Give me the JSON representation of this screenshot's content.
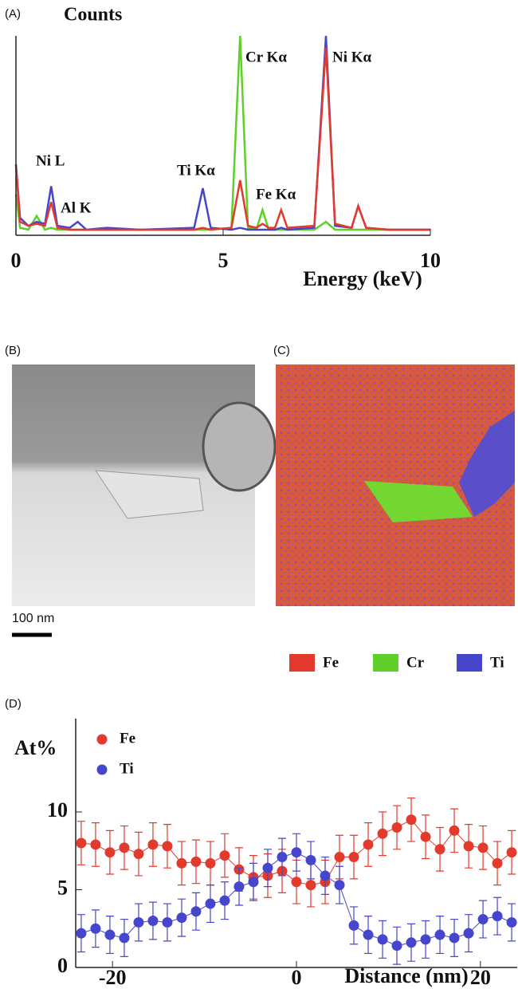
{
  "chart_data": [
    {
      "type": "line",
      "panel": "(A)",
      "y_label": "Counts",
      "x_label": "Energy (keV)",
      "annotations": [
        "Ni L",
        "Al K",
        "Ti Kα",
        "Cr Kα",
        "Fe Kα",
        "Ni Kα"
      ],
      "x": [
        0,
        0.1,
        0.3,
        0.5,
        0.7,
        0.85,
        1.0,
        1.3,
        1.49,
        1.7,
        2.2,
        3,
        4.3,
        4.51,
        4.7,
        5.2,
        5.41,
        5.6,
        5.8,
        5.95,
        6.1,
        6.25,
        6.4,
        6.55,
        7.2,
        7.48,
        7.7,
        8.1,
        8.26,
        8.45,
        9,
        10
      ],
      "xlim": [
        0,
        10
      ],
      "xticks": [
        0,
        5,
        10
      ],
      "ylim": [
        0,
        100
      ],
      "series": [
        {
          "color": "#5fcf2a",
          "values": [
            20,
            3,
            2,
            9,
            2,
            3,
            2,
            2,
            2,
            2,
            2,
            2,
            2,
            2,
            2,
            3,
            100,
            3,
            2,
            12,
            2,
            2,
            2,
            2,
            2,
            6,
            2,
            2,
            2,
            2,
            2,
            2
          ]
        },
        {
          "color": "#4646cc",
          "values": [
            35,
            8,
            4,
            6,
            5,
            24,
            4,
            3,
            6,
            2,
            3,
            2,
            3,
            23,
            3,
            2,
            3,
            2,
            2,
            2,
            2,
            2,
            3,
            2,
            3,
            100,
            4,
            3,
            14,
            3,
            2,
            2
          ]
        },
        {
          "color": "#e23a2c",
          "values": [
            35,
            6,
            4,
            5,
            4,
            16,
            3,
            2,
            2,
            2,
            2,
            2,
            2,
            3,
            2,
            3,
            27,
            4,
            3,
            5,
            3,
            3,
            12,
            3,
            4,
            94,
            5,
            3,
            14,
            3,
            2,
            2
          ]
        }
      ]
    },
    {
      "type": "scatter",
      "panel": "(D)",
      "y_label": "At%",
      "x_label": "Distance (nm)",
      "x": [
        -23.4,
        -21.84,
        -20.28,
        -18.72,
        -17.16,
        -15.6,
        -14.04,
        -12.48,
        -10.92,
        -9.36,
        -7.8,
        -6.24,
        -4.68,
        -3.12,
        -1.56,
        0,
        1.56,
        3.12,
        4.68,
        6.24,
        7.8,
        9.36,
        10.92,
        12.48,
        14.04,
        15.6,
        17.16,
        18.72,
        20.28,
        21.84,
        23.4
      ],
      "xlim": [
        -24,
        24
      ],
      "xticks": [
        -20,
        0,
        20
      ],
      "ylim": [
        0,
        16
      ],
      "yticks": [
        0,
        5,
        10
      ],
      "series": [
        {
          "name": "Fe",
          "color": "#e23a2c",
          "values": [
            8.0,
            7.9,
            7.4,
            7.7,
            7.3,
            7.9,
            7.8,
            6.7,
            6.8,
            6.7,
            7.2,
            6.3,
            5.8,
            5.9,
            6.2,
            5.5,
            5.3,
            5.5,
            7.1,
            7.1,
            7.9,
            8.6,
            9.0,
            9.5,
            8.4,
            7.6,
            8.8,
            7.8,
            7.7,
            6.7,
            7.4
          ],
          "errors": [
            1.4,
            1.4,
            1.4,
            1.4,
            1.4,
            1.4,
            1.4,
            1.4,
            1.4,
            1.4,
            1.4,
            1.4,
            1.4,
            1.4,
            1.4,
            1.4,
            1.4,
            1.4,
            1.4,
            1.4,
            1.4,
            1.4,
            1.4,
            1.4,
            1.4,
            1.4,
            1.4,
            1.4,
            1.4,
            1.4,
            1.4
          ]
        },
        {
          "name": "Ti",
          "color": "#4646cc",
          "values": [
            2.2,
            2.5,
            2.1,
            1.9,
            2.9,
            3.0,
            2.9,
            3.2,
            3.6,
            4.1,
            4.3,
            5.2,
            5.5,
            6.4,
            7.1,
            7.4,
            6.9,
            5.9,
            5.3,
            2.7,
            2.1,
            1.8,
            1.4,
            1.6,
            1.8,
            2.1,
            1.9,
            2.2,
            3.1,
            3.3,
            2.9
          ],
          "errors": [
            1.2,
            1.2,
            1.2,
            1.2,
            1.2,
            1.2,
            1.2,
            1.2,
            1.2,
            1.2,
            1.2,
            1.2,
            1.2,
            1.2,
            1.2,
            1.2,
            1.2,
            1.2,
            1.2,
            1.2,
            1.2,
            1.2,
            1.2,
            1.2,
            1.2,
            1.2,
            1.2,
            1.2,
            1.2,
            1.2,
            1.2
          ]
        }
      ]
    }
  ],
  "panels": {
    "b": {
      "label": "(B)",
      "scale_bar": "100 nm"
    },
    "c": {
      "label": "(C)",
      "legend": [
        {
          "name": "Fe",
          "color": "#e23a2c"
        },
        {
          "name": "Cr",
          "color": "#5fcf2a"
        },
        {
          "name": "Ti",
          "color": "#4646cc"
        }
      ]
    }
  }
}
